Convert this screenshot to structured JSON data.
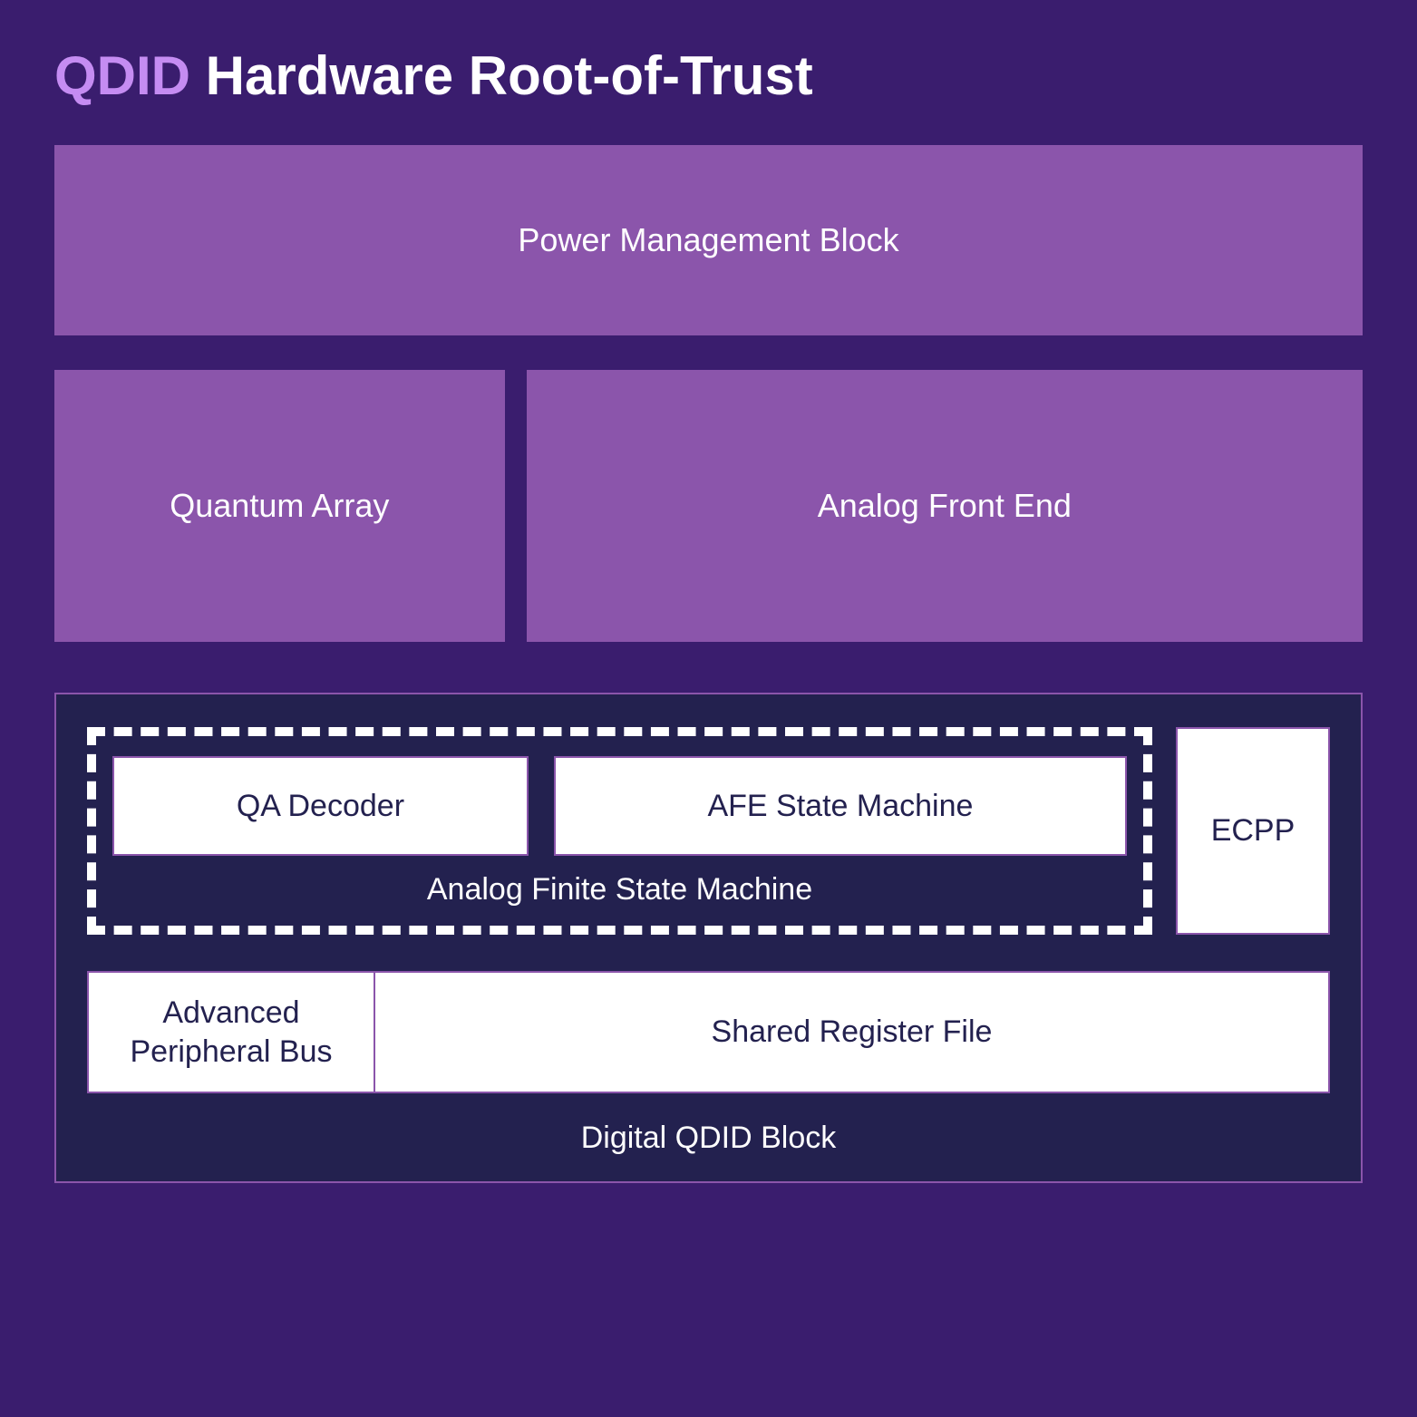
{
  "colors": {
    "page_bg": "#3a1d6e",
    "box_bg": "#8b55ab",
    "title_accent": "#c58cf2",
    "title_main": "#ffffff",
    "block_text": "#ffffff",
    "digital_bg": "#23214f",
    "digital_border": "#8b55ab",
    "dashed_border": "#ffffff",
    "white_bg": "#ffffff",
    "white_border": "#8b55ab",
    "dark_text": "#23214f"
  },
  "title": {
    "accent": "QDID",
    "rest": " Hardware Root-of-Trust"
  },
  "blocks": {
    "power": "Power Management Block",
    "quantum": "Quantum Array",
    "afe": "Analog Front End"
  },
  "digital": {
    "label": "Digital QDID Block",
    "afsm": {
      "label": "Analog Finite State Machine",
      "qa_decoder": "QA Decoder",
      "afe_sm": "AFE State Machine"
    },
    "ecpp": "ECPP",
    "apb": "Advanced Peripheral Bus",
    "srf": "Shared Register File"
  },
  "layout": {
    "power_height": 210,
    "mid_height": 300,
    "quantum_flex": 35,
    "afe_flex": 65,
    "afsm_inner_height": 110,
    "qa_flex": 42,
    "afesm_flex": 58,
    "row2_height": 135,
    "apb_flex": 23,
    "srf_flex": 77
  }
}
